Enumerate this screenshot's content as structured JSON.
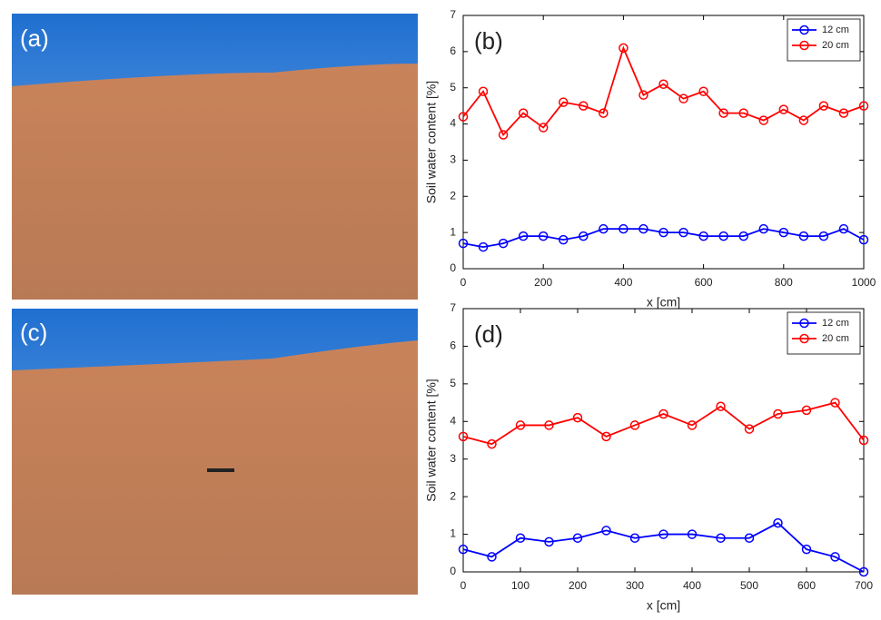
{
  "photos": [
    {
      "label": "(a)"
    },
    {
      "label": "(c)"
    }
  ],
  "chart_data": [
    {
      "type": "line",
      "annotation": "(b)",
      "xlabel": "x [cm]",
      "ylabel": "Soil water content [%]",
      "x": [
        0,
        50,
        100,
        150,
        200,
        250,
        300,
        350,
        400,
        450,
        500,
        550,
        600,
        650,
        700,
        750,
        800,
        850,
        900,
        950,
        1000
      ],
      "series": [
        {
          "name": "12 cm",
          "color": "#0000ff",
          "values": [
            0.7,
            0.6,
            0.7,
            0.9,
            0.9,
            0.8,
            0.9,
            1.1,
            1.1,
            1.1,
            1.0,
            1.0,
            0.9,
            0.9,
            0.9,
            1.1,
            1.0,
            0.9,
            0.9,
            1.1,
            0.8
          ]
        },
        {
          "name": "20 cm",
          "color": "#ff0000",
          "values": [
            4.2,
            4.9,
            3.7,
            4.3,
            3.9,
            4.6,
            4.5,
            4.3,
            6.1,
            4.8,
            5.1,
            4.7,
            4.9,
            4.3,
            4.3,
            4.1,
            4.4,
            4.1,
            4.5,
            4.3,
            4.5
          ]
        }
      ],
      "xlim": [
        0,
        1000
      ],
      "xticks": [
        0,
        200,
        400,
        600,
        800,
        1000
      ],
      "ylim": [
        0,
        7
      ],
      "yticks": [
        0,
        1,
        2,
        3,
        4,
        5,
        6,
        7
      ],
      "legend": "upper right"
    },
    {
      "type": "line",
      "annotation": "(d)",
      "xlabel": "x [cm]",
      "ylabel": "Soil water content [%]",
      "x": [
        0,
        50,
        100,
        150,
        200,
        250,
        300,
        350,
        400,
        450,
        500,
        550,
        600,
        650,
        700
      ],
      "series": [
        {
          "name": "12 cm",
          "color": "#0000ff",
          "values": [
            0.6,
            0.4,
            0.9,
            0.8,
            0.9,
            1.1,
            0.9,
            1.0,
            1.0,
            0.9,
            0.9,
            1.3,
            0.6,
            0.4,
            0.0
          ]
        },
        {
          "name": "20 cm",
          "color": "#ff0000",
          "values": [
            3.6,
            3.4,
            3.9,
            3.9,
            4.1,
            3.6,
            3.9,
            4.2,
            3.9,
            4.4,
            3.8,
            4.2,
            4.3,
            4.5,
            3.5
          ]
        }
      ],
      "xlim": [
        0,
        700
      ],
      "xticks": [
        0,
        100,
        200,
        300,
        400,
        500,
        600,
        700
      ],
      "ylim": [
        0,
        7
      ],
      "yticks": [
        0,
        1,
        2,
        3,
        4,
        5,
        6,
        7
      ],
      "legend": "upper right"
    }
  ]
}
